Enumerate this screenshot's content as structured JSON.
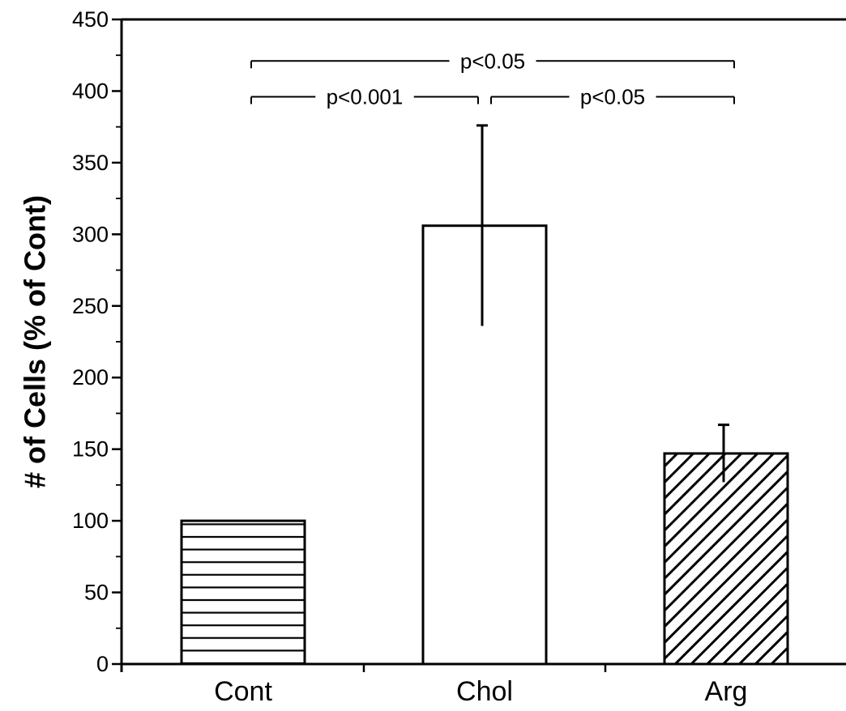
{
  "chart_data": {
    "type": "bar",
    "title": "",
    "xlabel": "",
    "ylabel": "# of Cells (% of Cont)",
    "ylim": [
      0,
      450
    ],
    "yticks": [
      0,
      50,
      100,
      150,
      200,
      250,
      300,
      350,
      400,
      450
    ],
    "categories": [
      "Cont",
      "Chol",
      "Arg"
    ],
    "values": [
      100,
      306,
      147
    ],
    "errors": [
      0,
      70,
      20
    ],
    "patterns": [
      "horizontal-lines",
      "none",
      "diagonal-lines"
    ],
    "grid": false,
    "legend": "none",
    "significance": [
      {
        "from": 0,
        "to": 1,
        "label": "p<0.001",
        "level": 396
      },
      {
        "from": 1,
        "to": 2,
        "label": "p<0.05",
        "level": 396
      },
      {
        "from": 0,
        "to": 2,
        "label": "p<0.05",
        "level": 421
      }
    ]
  }
}
